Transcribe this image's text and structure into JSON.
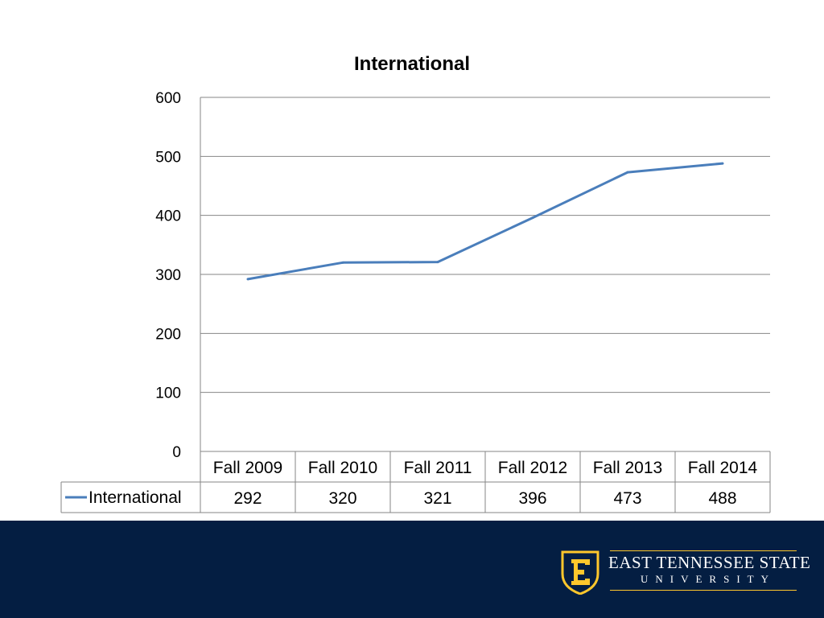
{
  "colors": {
    "series": "#4a7ebb",
    "grid": "#868686",
    "text": "#000000",
    "footer_bg": "#041e42",
    "gold": "#ffc72c",
    "logo_text": "#ffffff"
  },
  "chart_data": {
    "type": "line",
    "title": "International",
    "categories": [
      "Fall 2009",
      "Fall 2010",
      "Fall 2011",
      "Fall 2012",
      "Fall 2013",
      "Fall 2014"
    ],
    "series": [
      {
        "name": "International",
        "values": [
          292,
          320,
          321,
          396,
          473,
          488
        ]
      }
    ],
    "yticks": [
      0,
      100,
      200,
      300,
      400,
      500,
      600
    ],
    "ylim": [
      0,
      600
    ],
    "grid": true,
    "legend": "data-table-left",
    "data_table": true
  },
  "branding": {
    "logo_icon": "etsu-e-shield-icon",
    "name_line1": "EAST TENNESSEE STATE",
    "name_line2": "UNIVERSITY"
  }
}
